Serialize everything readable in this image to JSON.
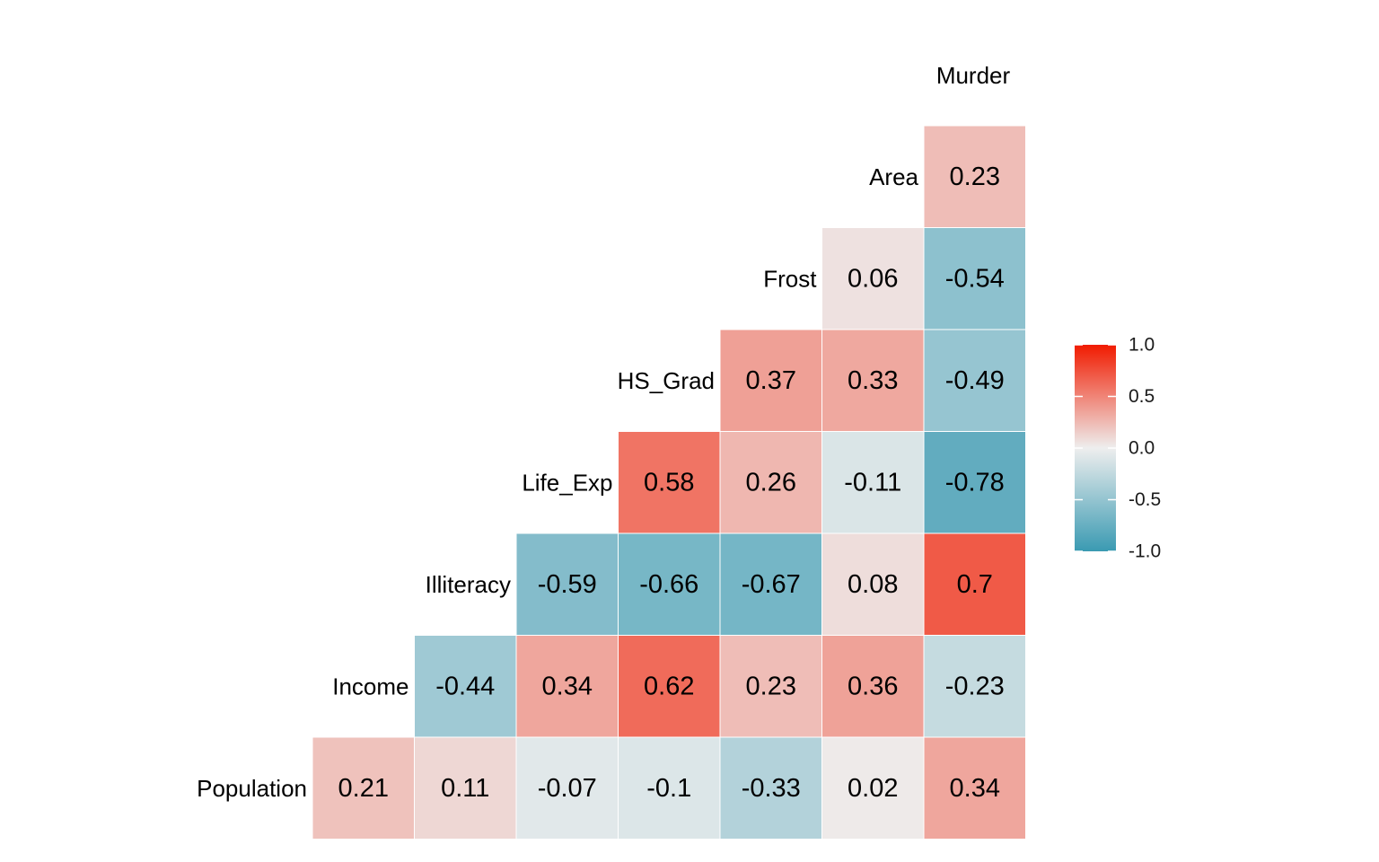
{
  "chart_data": {
    "type": "heatmap",
    "variables": [
      "Population",
      "Income",
      "Illiteracy",
      "Life_Exp",
      "HS_Grad",
      "Frost",
      "Area",
      "Murder"
    ],
    "rows": [
      {
        "label": "Murder",
        "values": []
      },
      {
        "label": "Area",
        "values": [
          0.23
        ]
      },
      {
        "label": "Frost",
        "values": [
          0.06,
          -0.54
        ]
      },
      {
        "label": "HS_Grad",
        "values": [
          0.37,
          0.33,
          -0.49
        ]
      },
      {
        "label": "Life_Exp",
        "values": [
          0.58,
          0.26,
          -0.11,
          -0.78
        ]
      },
      {
        "label": "Illiteracy",
        "values": [
          -0.59,
          -0.66,
          -0.67,
          0.08,
          0.7
        ]
      },
      {
        "label": "Income",
        "values": [
          -0.44,
          0.34,
          0.62,
          0.23,
          0.36,
          -0.23
        ]
      },
      {
        "label": "Population",
        "values": [
          0.21,
          0.11,
          -0.07,
          -0.1,
          -0.33,
          0.02,
          0.34
        ]
      }
    ],
    "value_labels": {
      "Area": [
        "0.23"
      ],
      "Frost": [
        "0.06",
        "-0.54"
      ],
      "HS_Grad": [
        "0.37",
        "0.33",
        "-0.49"
      ],
      "Life_Exp": [
        "0.58",
        "0.26",
        "-0.11",
        "-0.78"
      ],
      "Illiteracy": [
        "-0.59",
        "-0.66",
        "-0.67",
        "0.08",
        "0.7"
      ],
      "Income": [
        "-0.44",
        "0.34",
        "0.62",
        "0.23",
        "0.36",
        "-0.23"
      ],
      "Population": [
        "0.21",
        "0.11",
        "-0.07",
        "-0.1",
        "-0.33",
        "0.02",
        "0.34"
      ]
    },
    "scale": {
      "min": -1.0,
      "max": 1.0,
      "low_color": "#3A9AB2",
      "mid_color": "#EEEEEE",
      "high_color": "#F11B00"
    },
    "legend": {
      "position": "right",
      "ticks": [
        1.0,
        0.5,
        0.0,
        -0.5,
        -1.0
      ],
      "tick_labels": [
        "1.0",
        "0.5",
        "0.0",
        "-0.5",
        "-1.0"
      ]
    }
  }
}
